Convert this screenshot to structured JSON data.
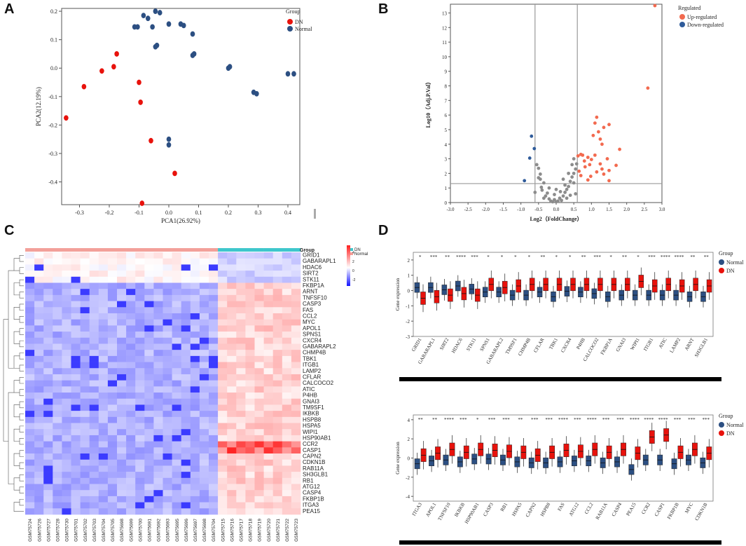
{
  "panels": {
    "a": "A",
    "b": "B",
    "c": "C",
    "d": "D"
  },
  "colors": {
    "dn_red": "#e8120c",
    "normal_blue": "#2c4f82",
    "up_red": "#f26a4f",
    "down_blue": "#2f5b9a",
    "grey_dot": "#8c8c8c",
    "teal": "#3fc7cc",
    "salmon": "#f3a09a"
  },
  "chart_data": [
    {
      "id": "pca",
      "type": "scatter",
      "xlabel": "PCA1(26.92%)",
      "ylabel": "PCA2(12.19%)",
      "xlim": [
        -0.36,
        0.44
      ],
      "ylim": [
        -0.48,
        0.21
      ],
      "xticks": [
        -0.3,
        -0.2,
        -0.1,
        0.0,
        0.1,
        0.2,
        0.3,
        0.4
      ],
      "xtick_labels": [
        "-0.3",
        "-0.2",
        "-0.1",
        "0.0",
        "0.1",
        "0.2",
        "0.3",
        "0.4"
      ],
      "yticks": [
        0.2,
        0.1,
        0.0,
        -0.1,
        -0.2,
        -0.3,
        -0.4
      ],
      "ytick_labels": [
        "0.2",
        "0.1",
        "0.0",
        "-0.1",
        "-0.2",
        "-0.3",
        "-0.4"
      ],
      "legend_title": "Group",
      "legend": [
        "DN",
        "Normal"
      ],
      "series": [
        {
          "name": "DN",
          "points": [
            [
              -0.345,
              -0.175
            ],
            [
              -0.285,
              -0.065
            ],
            [
              -0.225,
              -0.01
            ],
            [
              -0.185,
              0.005
            ],
            [
              -0.175,
              0.05
            ],
            [
              -0.1,
              -0.05
            ],
            [
              -0.095,
              -0.12
            ],
            [
              -0.06,
              -0.255
            ],
            [
              -0.09,
              -0.475
            ],
            [
              0.02,
              -0.37
            ]
          ]
        },
        {
          "name": "Normal",
          "points": [
            [
              -0.115,
              0.145
            ],
            [
              -0.105,
              0.145
            ],
            [
              -0.085,
              0.185
            ],
            [
              -0.07,
              0.175
            ],
            [
              -0.045,
              0.2
            ],
            [
              -0.03,
              0.195
            ],
            [
              -0.055,
              0.145
            ],
            [
              0.0,
              0.155
            ],
            [
              0.04,
              0.155
            ],
            [
              0.05,
              0.15
            ],
            [
              0.08,
              0.12
            ],
            [
              -0.045,
              0.075
            ],
            [
              -0.04,
              0.08
            ],
            [
              0.08,
              0.045
            ],
            [
              0.085,
              0.05
            ],
            [
              0.2,
              -0.0
            ],
            [
              0.205,
              0.005
            ],
            [
              0.285,
              -0.085
            ],
            [
              0.295,
              -0.09
            ],
            [
              0.4,
              -0.02
            ],
            [
              0.42,
              -0.02
            ],
            [
              0.0,
              -0.25
            ],
            [
              0.0,
              -0.27
            ]
          ]
        }
      ]
    },
    {
      "id": "volcano",
      "type": "scatter",
      "xlabel": "Log2（FoldChange）",
      "ylabel": "Log10（Adj.P.Val）",
      "xlim": [
        -3.0,
        3.0
      ],
      "ylim": [
        0,
        13.6
      ],
      "xticks": [
        -3.0,
        -2.5,
        -2.0,
        -1.5,
        -1.0,
        -0.5,
        0.0,
        0.5,
        1.0,
        1.5,
        2.0,
        2.5,
        3.0
      ],
      "xtick_labels": [
        "-3.0",
        "-2.5",
        "-2.0",
        "-1.5",
        "-1.0",
        "-0.5",
        "0.0",
        "0.5",
        "1.0",
        "1.5",
        "2.0",
        "2.5",
        "3.0"
      ],
      "yticks": [
        0,
        1,
        2,
        3,
        4,
        5,
        6,
        7,
        8,
        9,
        10,
        11,
        12,
        13
      ],
      "ytick_labels": [
        "0",
        "1",
        "2",
        "3",
        "4",
        "5",
        "6",
        "7",
        "8",
        "9",
        "10",
        "11",
        "12",
        "13"
      ],
      "vlines": [
        -0.6,
        0.6
      ],
      "hline": 1.3,
      "legend_title": "Regulated",
      "legend": [
        "Up-regulated",
        "Down-regulated"
      ],
      "up": [
        [
          2.8,
          13.5
        ],
        [
          2.6,
          7.85
        ],
        [
          1.5,
          5.35
        ],
        [
          1.35,
          5.15
        ],
        [
          1.15,
          5.85
        ],
        [
          1.1,
          5.45
        ],
        [
          1.2,
          4.85
        ],
        [
          1.05,
          4.6
        ],
        [
          1.25,
          4.35
        ],
        [
          1.8,
          3.65
        ],
        [
          1.3,
          4.0
        ],
        [
          1.45,
          3.0
        ],
        [
          1.7,
          2.55
        ],
        [
          0.8,
          2.85
        ],
        [
          0.9,
          3.1
        ],
        [
          0.95,
          2.6
        ],
        [
          1.0,
          2.95
        ],
        [
          1.3,
          2.3
        ],
        [
          1.35,
          1.95
        ],
        [
          0.75,
          3.25
        ],
        [
          0.7,
          3.3
        ],
        [
          0.62,
          3.2
        ],
        [
          0.65,
          2.15
        ],
        [
          0.7,
          1.85
        ],
        [
          0.82,
          2.45
        ],
        [
          1.1,
          3.25
        ],
        [
          1.15,
          2.1
        ],
        [
          1.5,
          2.2
        ],
        [
          0.98,
          1.8
        ],
        [
          1.25,
          2.65
        ],
        [
          0.9,
          1.55
        ],
        [
          1.5,
          1.5
        ]
      ],
      "down": [
        [
          -0.7,
          4.55
        ],
        [
          -0.62,
          3.7
        ],
        [
          -0.75,
          3.05
        ],
        [
          -0.9,
          1.5
        ]
      ],
      "ns": [
        [
          -0.55,
          2.6
        ],
        [
          -0.5,
          2.35
        ],
        [
          -0.45,
          1.95
        ],
        [
          -0.5,
          1.7
        ],
        [
          -0.35,
          1.35
        ],
        [
          -0.42,
          1.05
        ],
        [
          -0.4,
          0.85
        ],
        [
          -0.25,
          0.65
        ],
        [
          -0.3,
          0.45
        ],
        [
          -0.2,
          0.25
        ],
        [
          -0.15,
          0.1
        ],
        [
          -0.1,
          0.05
        ],
        [
          -0.05,
          0.2
        ],
        [
          0.0,
          0.05
        ],
        [
          0.05,
          0.1
        ],
        [
          0.1,
          0.3
        ],
        [
          0.15,
          0.15
        ],
        [
          0.2,
          0.45
        ],
        [
          0.25,
          0.7
        ],
        [
          0.3,
          0.9
        ],
        [
          0.35,
          1.1
        ],
        [
          0.4,
          1.45
        ],
        [
          0.45,
          1.75
        ],
        [
          0.5,
          2.0
        ],
        [
          0.55,
          2.3
        ],
        [
          0.58,
          2.65
        ],
        [
          0.5,
          3.0
        ],
        [
          0.45,
          2.6
        ],
        [
          0.35,
          2.0
        ],
        [
          -0.05,
          0.55
        ],
        [
          0.12,
          0.75
        ],
        [
          -0.6,
          0.7
        ],
        [
          0.55,
          0.6
        ],
        [
          0.25,
          1.2
        ],
        [
          -0.2,
          1.0
        ],
        [
          0.4,
          0.5
        ],
        [
          -0.35,
          0.3
        ],
        [
          0.0,
          0.9
        ],
        [
          0.3,
          0.3
        ],
        [
          -0.45,
          1.6
        ],
        [
          0.5,
          1.35
        ],
        [
          0.2,
          1.6
        ]
      ]
    },
    {
      "id": "heatmap",
      "type": "heatmap",
      "legend_title": "Group",
      "legend": [
        "DN",
        "Normal"
      ],
      "scale_labels": [
        "4",
        "2",
        "0",
        "-2"
      ],
      "genes": [
        "GRID1",
        "GABARAPL1",
        "HDAC6",
        "SIRT2",
        "STK11",
        "FKBP1A",
        "ARNT",
        "TNFSF10",
        "CASP3",
        "FAS",
        "CCL2",
        "MYC",
        "APOL1",
        "SPNS1",
        "CXCR4",
        "GABARAPL2",
        "CHMP4B",
        "TBK1",
        "ITGB1",
        "LAMP2",
        "CFLAR",
        "CALCOCO2",
        "ATIC",
        "P4HB",
        "GNAI3",
        "TM9SF1",
        "IKBKB",
        "HSPB8",
        "HSPA5",
        "WIPI1",
        "HSP90AB1",
        "CCR2",
        "CASP1",
        "CAPN2",
        "CDKN1B",
        "RAB11A",
        "SH3GLB1",
        "RB1",
        "ATG12",
        "CASP4",
        "FKBP1B",
        "ITGA3",
        "PEA15"
      ],
      "samples": [
        "GSM75724",
        "GSM75726",
        "GSM75727",
        "GSM75728",
        "GSM75730",
        "GSM75701",
        "GSM75702",
        "GSM75703",
        "GSM75704",
        "GSM75705",
        "GSM75698",
        "GSM75699",
        "GSM75700",
        "GSM75691",
        "GSM75692",
        "GSM75693",
        "GSM75695",
        "GSM75696",
        "GSM75697",
        "GSM75698",
        "GSM75704",
        "GSM75715",
        "GSM75716",
        "GSM75717",
        "GSM75718",
        "GSM75719",
        "GSM75720",
        "GSM75721",
        "GSM75722",
        "GSM75723"
      ],
      "normal_count": 21,
      "dn_count": 9
    },
    {
      "id": "box_top",
      "type": "box",
      "ylabel": "Gene expression",
      "ylim": [
        -3,
        2.5
      ],
      "yticks": [
        2,
        1,
        0,
        -1,
        -2,
        -3
      ],
      "ytick_labels": [
        "2",
        "1",
        "0",
        "-1",
        "-2",
        "-3"
      ],
      "legend_title": "Group",
      "legend": [
        "Normal",
        "DN"
      ],
      "genes": [
        "GRID1",
        "GABARAPL1",
        "SIRT2",
        "HDAC6",
        "STK11",
        "SPNS1",
        "GABARAPL2",
        "TM9SF1",
        "CHMP4B",
        "CFLAR",
        "TBK1",
        "CXCR4",
        "P4HB",
        "CALCOCO2",
        "FKBP1A",
        "GNAI3",
        "WIPI1",
        "ITGB1",
        "ATIC",
        "LAMP2",
        "ARNT",
        "SH3GLB1"
      ],
      "significance": [
        "*",
        "***",
        "**",
        "****",
        "***",
        "*",
        "*",
        "*",
        "*",
        "**",
        "*",
        "*",
        "**",
        "***",
        "*",
        "**",
        "*",
        "***",
        "****",
        "****",
        "**",
        "**"
      ],
      "normal_medians": [
        0.2,
        0.2,
        0.05,
        0.3,
        0.1,
        -0.1,
        -0.1,
        -0.3,
        -0.3,
        -0.1,
        -0.4,
        -0.05,
        -0.1,
        -0.2,
        -0.4,
        -0.3,
        -0.3,
        -0.3,
        -0.3,
        -0.3,
        -0.4,
        -0.4
      ],
      "dn_medians": [
        -0.5,
        -0.4,
        -0.3,
        -0.2,
        -0.3,
        0.4,
        0.2,
        0.3,
        0.4,
        0.4,
        0.4,
        0.4,
        0.4,
        0.4,
        0.4,
        0.4,
        0.6,
        0.3,
        0.4,
        0.3,
        0.4,
        0.3
      ]
    },
    {
      "id": "box_bottom",
      "type": "box",
      "ylabel": "Gene expression",
      "ylim": [
        -4.5,
        4.5
      ],
      "yticks": [
        4,
        2,
        0,
        -2,
        -4
      ],
      "ytick_labels": [
        "4",
        "2",
        "0",
        "-2",
        "-4"
      ],
      "legend_title": "Group",
      "legend": [
        "Normal",
        "DN"
      ],
      "genes": [
        "ITGA3",
        "APOL1",
        "TNFSF10",
        "IKBKB",
        "HSP90AB1",
        "CASP3",
        "RB1",
        "HSPA5",
        "CAPN2",
        "HSPB8",
        "FAS",
        "ATG12",
        "CCL2",
        "RAB11A",
        "CASP4",
        "PEA15",
        "CCR2",
        "CASP1",
        "FKBP1B",
        "MYC",
        "CDKN1B"
      ],
      "significance": [
        "**",
        "**",
        "****",
        "***",
        "*",
        "***",
        "***",
        "**",
        "***",
        "***",
        "****",
        "***",
        "****",
        "***",
        "***",
        "****",
        "****",
        "****",
        "***",
        "***",
        "***"
      ],
      "normal_medians": [
        -0.6,
        -0.3,
        -0.2,
        -0.4,
        -0.1,
        -0.1,
        -0.2,
        -0.4,
        -0.5,
        -0.5,
        -0.4,
        -0.3,
        -0.3,
        -0.5,
        -0.4,
        -1.2,
        -0.2,
        -0.2,
        -0.6,
        -0.2,
        -0.5
      ],
      "dn_medians": [
        0.3,
        0.5,
        0.9,
        0.6,
        0.9,
        0.8,
        0.7,
        0.6,
        0.3,
        0.6,
        0.8,
        0.7,
        0.9,
        0.6,
        0.9,
        0.5,
        2.2,
        2.4,
        0.6,
        0.9,
        0.5
      ]
    }
  ]
}
